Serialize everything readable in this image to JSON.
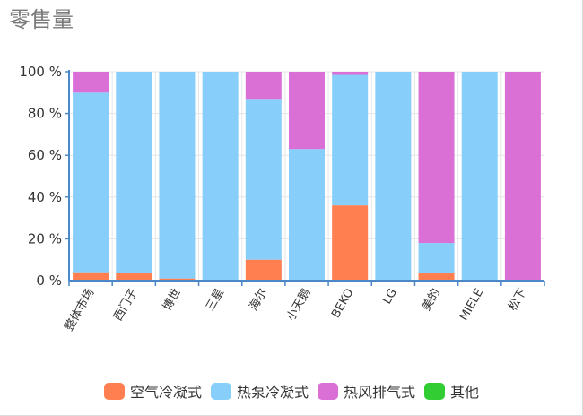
{
  "chart_data": {
    "type": "bar",
    "stacked": true,
    "title": "零售量",
    "xlabel": "",
    "ylabel": "",
    "ylim": [
      0,
      100
    ],
    "y_ticks": [
      "0 %",
      "20 %",
      "40 %",
      "60 %",
      "80 %",
      "100 %"
    ],
    "grid": true,
    "legend_position": "bottom",
    "categories": [
      "整体市场",
      "西门子",
      "博世",
      "三星",
      "海尔",
      "小天鹅",
      "BEKO",
      "LG",
      "美的",
      "MIELE",
      "松下"
    ],
    "series": [
      {
        "name": "空气冷凝式",
        "color": "#ff7f50",
        "values": [
          4,
          3.5,
          1,
          0,
          10,
          0,
          36,
          0,
          3.5,
          0,
          0
        ]
      },
      {
        "name": "热泵冷凝式",
        "color": "#87cefa",
        "values": [
          86,
          96.5,
          99,
          100,
          77,
          63,
          62.5,
          100,
          14.5,
          100,
          0
        ]
      },
      {
        "name": "热风排气式",
        "color": "#da70d6",
        "values": [
          10,
          0,
          0,
          0,
          13,
          37,
          1.5,
          0,
          82,
          0,
          100
        ]
      },
      {
        "name": "其他",
        "color": "#32cd32",
        "values": [
          0,
          0,
          0,
          0,
          0,
          0,
          0,
          0,
          0,
          0,
          0
        ]
      }
    ]
  }
}
